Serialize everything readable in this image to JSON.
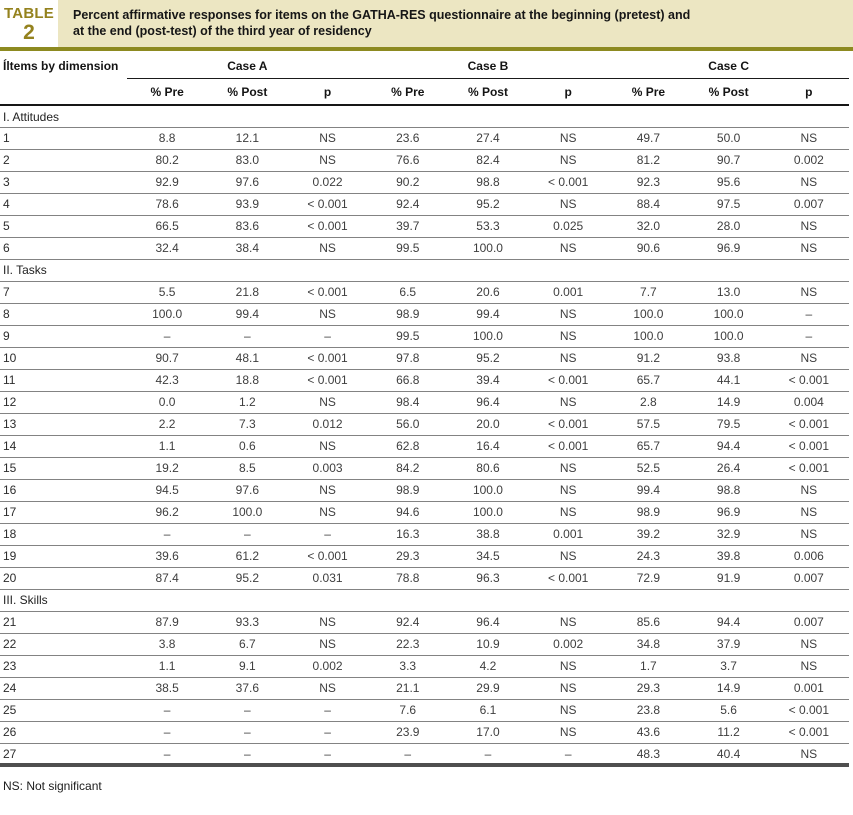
{
  "header": {
    "badge_word": "TABLE",
    "badge_number": "2",
    "title": "Percent affirmative responses for items on the GATHA-RES questionnaire at the beginning (pretest) and at the end (post-test) of the third year of residency"
  },
  "colors": {
    "olive_accent": "#8d8a20",
    "badge_text": "#94821e",
    "title_band_background": "#ece6c2",
    "rule_dark": "#161616"
  },
  "table": {
    "first_col_header": "Íltems by dimension",
    "groups": [
      "Case A",
      "Case B",
      "Case C"
    ],
    "subheaders": [
      "% Pre",
      "% Post",
      "p"
    ],
    "sections": [
      {
        "label": "I. Attitudes",
        "rows": [
          {
            "item": "1",
            "values": [
              "8.8",
              "12.1",
              "NS",
              "23.6",
              "27.4",
              "NS",
              "49.7",
              "50.0",
              "NS"
            ]
          },
          {
            "item": "2",
            "values": [
              "80.2",
              "83.0",
              "NS",
              "76.6",
              "82.4",
              "NS",
              "81.2",
              "90.7",
              "0.002"
            ]
          },
          {
            "item": "3",
            "values": [
              "92.9",
              "97.6",
              "0.022",
              "90.2",
              "98.8",
              "< 0.001",
              "92.3",
              "95.6",
              "NS"
            ]
          },
          {
            "item": "4",
            "values": [
              "78.6",
              "93.9",
              "< 0.001",
              "92.4",
              "95.2",
              "NS",
              "88.4",
              "97.5",
              "0.007"
            ]
          },
          {
            "item": "5",
            "values": [
              "66.5",
              "83.6",
              "< 0.001",
              "39.7",
              "53.3",
              "0.025",
              "32.0",
              "28.0",
              "NS"
            ]
          },
          {
            "item": "6",
            "values": [
              "32.4",
              "38.4",
              "NS",
              "99.5",
              "100.0",
              "NS",
              "90.6",
              "96.9",
              "NS"
            ]
          }
        ]
      },
      {
        "label": "II. Tasks",
        "rows": [
          {
            "item": "7",
            "values": [
              "5.5",
              "21.8",
              "< 0.001",
              "6.5",
              "20.6",
              "0.001",
              "7.7",
              "13.0",
              "NS"
            ]
          },
          {
            "item": "8",
            "values": [
              "100.0",
              "99.4",
              "NS",
              "98.9",
              "99.4",
              "NS",
              "100.0",
              "100.0",
              "–"
            ]
          },
          {
            "item": "9",
            "values": [
              "–",
              "–",
              "–",
              "99.5",
              "100.0",
              "NS",
              "100.0",
              "100.0",
              "–"
            ]
          },
          {
            "item": "10",
            "values": [
              "90.7",
              "48.1",
              "< 0.001",
              "97.8",
              "95.2",
              "NS",
              "91.2",
              "93.8",
              "NS"
            ]
          },
          {
            "item": "11",
            "values": [
              "42.3",
              "18.8",
              "< 0.001",
              "66.8",
              "39.4",
              "< 0.001",
              "65.7",
              "44.1",
              "< 0.001"
            ]
          },
          {
            "item": "12",
            "values": [
              "0.0",
              "1.2",
              "NS",
              "98.4",
              "96.4",
              "NS",
              "2.8",
              "14.9",
              "0.004"
            ]
          },
          {
            "item": "13",
            "values": [
              "2.2",
              "7.3",
              "0.012",
              "56.0",
              "20.0",
              "< 0.001",
              "57.5",
              "79.5",
              "< 0.001"
            ]
          },
          {
            "item": "14",
            "values": [
              "1.1",
              "0.6",
              "NS",
              "62.8",
              "16.4",
              "< 0.001",
              "65.7",
              "94.4",
              "< 0.001"
            ]
          },
          {
            "item": "15",
            "values": [
              "19.2",
              "8.5",
              "0.003",
              "84.2",
              "80.6",
              "NS",
              "52.5",
              "26.4",
              "< 0.001"
            ]
          },
          {
            "item": "16",
            "values": [
              "94.5",
              "97.6",
              "NS",
              "98.9",
              "100.0",
              "NS",
              "99.4",
              "98.8",
              "NS"
            ]
          },
          {
            "item": "17",
            "values": [
              "96.2",
              "100.0",
              "NS",
              "94.6",
              "100.0",
              "NS",
              "98.9",
              "96.9",
              "NS"
            ]
          },
          {
            "item": "18",
            "values": [
              "–",
              "–",
              "–",
              "16.3",
              "38.8",
              "0.001",
              "39.2",
              "32.9",
              "NS"
            ]
          },
          {
            "item": "19",
            "values": [
              "39.6",
              "61.2",
              "< 0.001",
              "29.3",
              "34.5",
              "NS",
              "24.3",
              "39.8",
              "0.006"
            ]
          },
          {
            "item": "20",
            "values": [
              "87.4",
              "95.2",
              "0.031",
              "78.8",
              "96.3",
              "< 0.001",
              "72.9",
              "91.9",
              "0.007"
            ]
          }
        ]
      },
      {
        "label": "III. Skills",
        "rows": [
          {
            "item": "21",
            "values": [
              "87.9",
              "93.3",
              "NS",
              "92.4",
              "96.4",
              "NS",
              "85.6",
              "94.4",
              "0.007"
            ]
          },
          {
            "item": "22",
            "values": [
              "3.8",
              "6.7",
              "NS",
              "22.3",
              "10.9",
              "0.002",
              "34.8",
              "37.9",
              "NS"
            ]
          },
          {
            "item": "23",
            "values": [
              "1.1",
              "9.1",
              "0.002",
              "3.3",
              "4.2",
              "NS",
              "1.7",
              "3.7",
              "NS"
            ]
          },
          {
            "item": "24",
            "values": [
              "38.5",
              "37.6",
              "NS",
              "21.1",
              "29.9",
              "NS",
              "29.3",
              "14.9",
              "0.001"
            ]
          },
          {
            "item": "25",
            "values": [
              "–",
              "–",
              "–",
              "7.6",
              "6.1",
              "NS",
              "23.8",
              "5.6",
              "< 0.001"
            ]
          },
          {
            "item": "26",
            "values": [
              "–",
              "–",
              "–",
              "23.9",
              "17.0",
              "NS",
              "43.6",
              "11.2",
              "< 0.001"
            ]
          },
          {
            "item": "27",
            "values": [
              "–",
              "–",
              "–",
              "–",
              "–",
              "–",
              "48.3",
              "40.4",
              "NS"
            ]
          }
        ]
      }
    ]
  },
  "footnote": "NS: Not significant"
}
